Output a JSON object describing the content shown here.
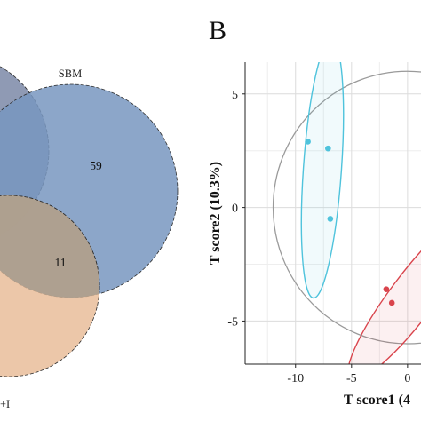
{
  "chart_data": [
    {
      "type": "venn",
      "sets": [
        "SBM",
        "+I"
      ],
      "regions": {
        "SBM_only": "59",
        "SBM_and_I_and_left": "11"
      },
      "colors": {
        "upper_left_circle": "#7b88a7",
        "sbm_circle": "#7897bf",
        "lower_circle": "#e7b994",
        "overlap": "#aa9d8e"
      }
    },
    {
      "panel_label": "B",
      "type": "scatter",
      "xlabel": "T score1 (4",
      "ylabel": "T score2 (10.3%)",
      "x_ticks": [
        "-10",
        "-5",
        "0"
      ],
      "y_ticks": [
        "5",
        "0",
        "-5"
      ],
      "xlim": [
        -14.5,
        1.2
      ],
      "ylim": [
        -6.9,
        6.4
      ],
      "grid": true,
      "series": [
        {
          "color": "#4fc3dc",
          "points": [
            [
              -8.9,
              2.9
            ],
            [
              -7.1,
              2.6
            ],
            [
              -6.9,
              -0.5
            ]
          ],
          "ellipse": {
            "center": [
              -7.6,
              1.7
            ],
            "rx": 1.7,
            "ry": 5.7,
            "tilt_deg": 4
          }
        },
        {
          "color": "#d9444c",
          "points": [
            [
              -1.9,
              -3.6
            ],
            [
              -1.4,
              -4.2
            ]
          ],
          "ellipse": {
            "center": [
              0.5,
              -3.9
            ],
            "rx": 2.0,
            "ry": 4.6,
            "tilt_deg": 37
          }
        }
      ]
    }
  ]
}
